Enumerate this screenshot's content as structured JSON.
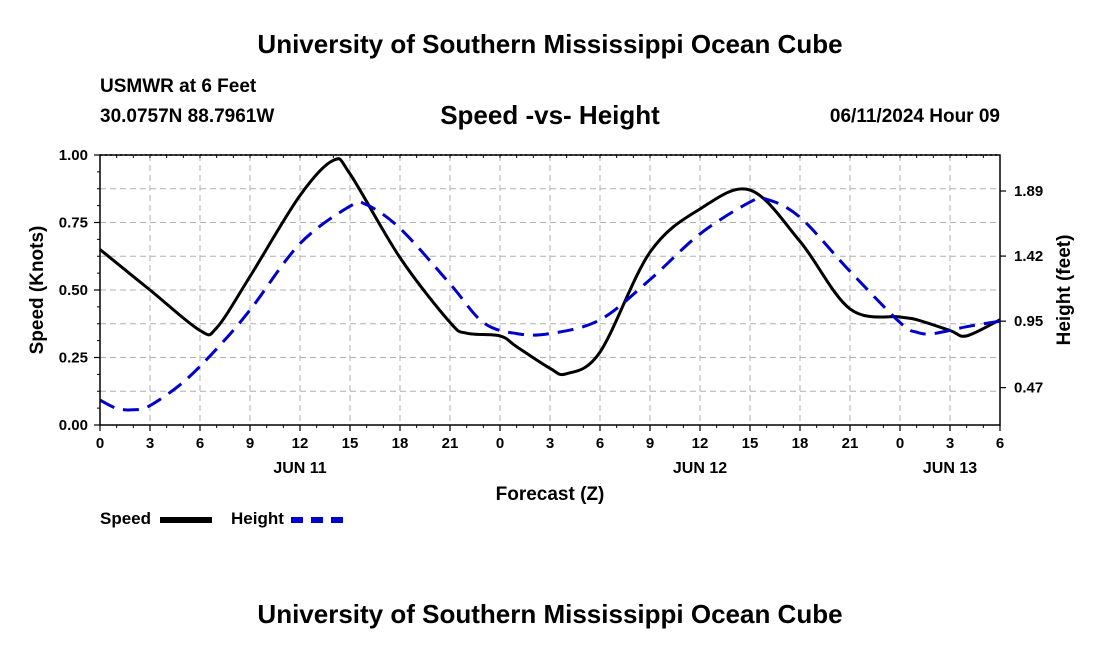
{
  "header": {
    "title": "University of Southern Mississippi Ocean Cube",
    "station": "USMWR at 6 Feet",
    "coords": "30.0757N  88.7961W",
    "datetime": "06/11/2024 Hour 09"
  },
  "footer": {
    "title": "University of Southern Mississippi Ocean Cube"
  },
  "legend": {
    "speed_label": "Speed",
    "height_label": "Height"
  },
  "colors": {
    "speed": "#000000",
    "height": "#0000cc",
    "grid": "#b0b0b0"
  },
  "chart_data": {
    "type": "line",
    "title": "Speed -vs- Height",
    "xlabel": "Forecast (Z)",
    "ylabel": "Speed (Knots)",
    "y2label": "Height (feet)",
    "xlim": [
      0,
      54
    ],
    "ylim": [
      0,
      1.0
    ],
    "y2lim": [
      0.2,
      2.15
    ],
    "x_ticks": [
      0,
      3,
      6,
      9,
      12,
      15,
      18,
      21,
      24,
      27,
      30,
      33,
      36,
      39,
      42,
      45,
      48,
      51,
      54
    ],
    "x_tick_labels": [
      "0",
      "3",
      "6",
      "9",
      "12",
      "15",
      "18",
      "21",
      "0",
      "3",
      "6",
      "9",
      "12",
      "15",
      "18",
      "21",
      "0",
      "3",
      "6"
    ],
    "date_labels": [
      {
        "x": 12,
        "label": "JUN 11"
      },
      {
        "x": 36,
        "label": "JUN 12"
      },
      {
        "x": 51,
        "label": "JUN 13"
      }
    ],
    "y_ticks": [
      0,
      0.25,
      0.5,
      0.75,
      1.0
    ],
    "y_tick_labels": [
      "0.00",
      "0.25",
      "0.50",
      "0.75",
      "1.00"
    ],
    "y2_ticks": [
      0.47,
      0.95,
      1.42,
      1.89
    ],
    "y2_tick_labels": [
      "0.47",
      "0.95",
      "1.42",
      "1.89"
    ],
    "grid": true,
    "series": [
      {
        "name": "Speed",
        "axis": "left",
        "style": "solid",
        "x": [
          0,
          3,
          6,
          7,
          9,
          12,
          14,
          15,
          18,
          21,
          22,
          24,
          25,
          27,
          28,
          30,
          33,
          36,
          39,
          42,
          45,
          48,
          49,
          51,
          52,
          54
        ],
        "values": [
          0.65,
          0.5,
          0.35,
          0.36,
          0.55,
          0.85,
          0.98,
          0.93,
          0.62,
          0.38,
          0.34,
          0.33,
          0.29,
          0.21,
          0.19,
          0.27,
          0.64,
          0.8,
          0.87,
          0.68,
          0.43,
          0.4,
          0.39,
          0.35,
          0.33,
          0.39
        ]
      },
      {
        "name": "Height",
        "axis": "right",
        "style": "dashed",
        "x": [
          0,
          1,
          2,
          3,
          5,
          7,
          9,
          12,
          15,
          16,
          18,
          21,
          23,
          25,
          27,
          30,
          33,
          36,
          39,
          40,
          42,
          45,
          48,
          49,
          50,
          52,
          54
        ],
        "values": [
          0.38,
          0.32,
          0.31,
          0.34,
          0.51,
          0.75,
          1.03,
          1.51,
          1.78,
          1.79,
          1.62,
          1.22,
          0.94,
          0.86,
          0.86,
          0.96,
          1.25,
          1.58,
          1.81,
          1.83,
          1.7,
          1.31,
          0.94,
          0.87,
          0.86,
          0.91,
          0.95
        ]
      }
    ]
  }
}
